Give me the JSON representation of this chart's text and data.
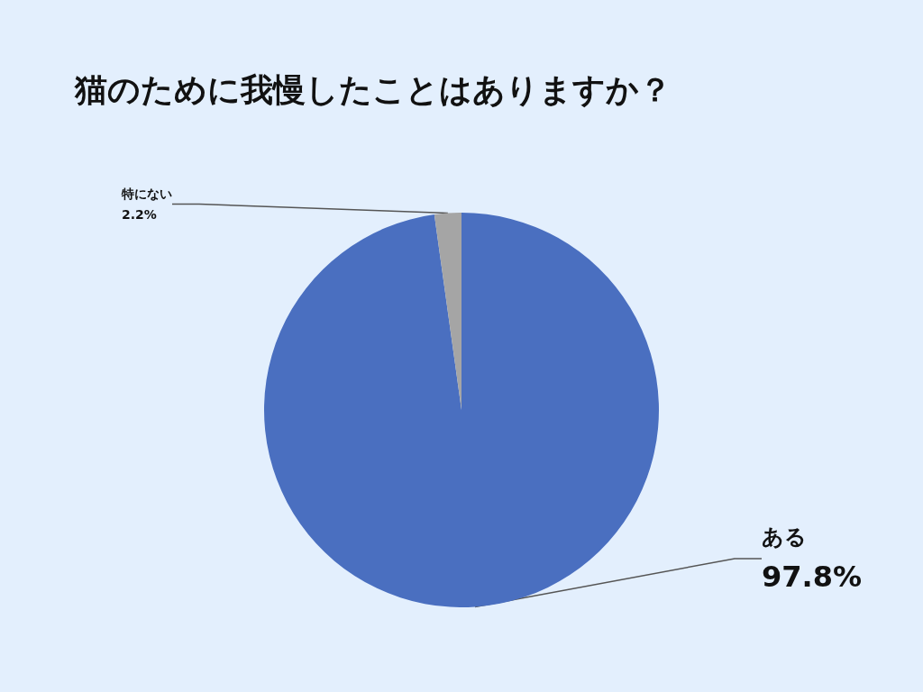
{
  "chart_data": {
    "type": "pie",
    "title": "猫のために我慢したことはありますか？",
    "categories": [
      "ある",
      "特にない"
    ],
    "values": [
      97.8,
      2.2
    ],
    "value_labels": [
      "97.8%",
      "2.2%"
    ],
    "colors": [
      "#4a6fc0",
      "#a5a5a5"
    ],
    "legend": false
  }
}
